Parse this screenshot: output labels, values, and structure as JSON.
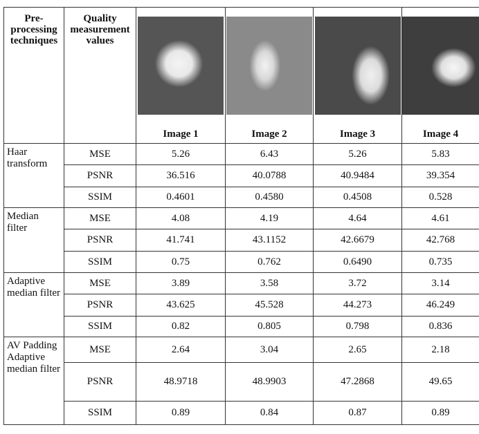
{
  "header": {
    "technique": "Pre-processing techniques",
    "measure": "Quality measurement values",
    "images": [
      "Image 1",
      "Image 2",
      "Image 3",
      "Image 4"
    ]
  },
  "groups": [
    {
      "technique": "Haar transform",
      "rows": [
        {
          "metric": "MSE",
          "values": [
            "5.26",
            "6.43",
            "5.26",
            "5.83"
          ]
        },
        {
          "metric": "PSNR",
          "values": [
            "36.516",
            "40.0788",
            "40.9484",
            "39.354"
          ]
        },
        {
          "metric": "SSIM",
          "values": [
            "0.4601",
            "0.4580",
            "0.4508",
            "0.528"
          ]
        }
      ]
    },
    {
      "technique": "Median filter",
      "rows": [
        {
          "metric": "MSE",
          "values": [
            "4.08",
            "4.19",
            "4.64",
            "4.61"
          ]
        },
        {
          "metric": "PSNR",
          "values": [
            "41.741",
            "43.1152",
            "42.6679",
            "42.768"
          ]
        },
        {
          "metric": "SSIM",
          "values": [
            "0.75",
            "0.762",
            "0.6490",
            "0.735"
          ]
        }
      ]
    },
    {
      "technique": "Adaptive median filter",
      "rows": [
        {
          "metric": "MSE",
          "values": [
            "3.89",
            "3.58",
            "3.72",
            "3.14"
          ]
        },
        {
          "metric": "PSNR",
          "values": [
            "43.625",
            "45.528",
            "44.273",
            "46.249"
          ]
        },
        {
          "metric": "SSIM",
          "values": [
            "0.82",
            "0.805",
            "0.798",
            "0.836"
          ]
        }
      ]
    },
    {
      "technique": "AV Padding Adaptive median filter",
      "rows": [
        {
          "metric": "MSE",
          "values": [
            "2.64",
            "3.04",
            "2.65",
            "2.18"
          ]
        },
        {
          "metric": "PSNR",
          "values": [
            "48.9718",
            "48.9903",
            "47.2868",
            "49.65"
          ]
        },
        {
          "metric": "SSIM",
          "values": [
            "0.89",
            "0.84",
            "0.87",
            "0.89"
          ]
        }
      ]
    }
  ]
}
